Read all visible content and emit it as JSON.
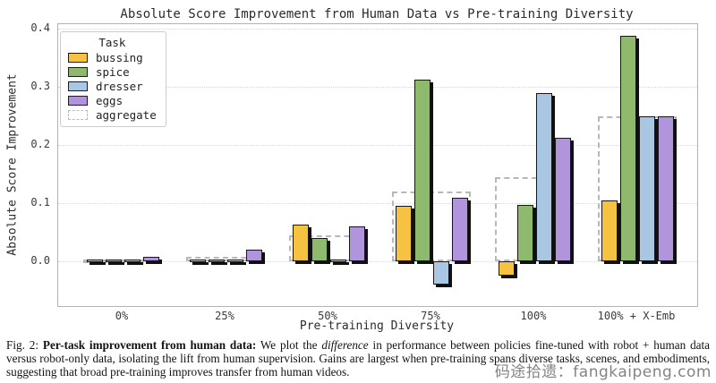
{
  "chart_data": {
    "type": "bar",
    "title": "Absolute Score Improvement from Human Data vs Pre-training Diversity",
    "xlabel": "Pre-training Diversity",
    "ylabel": "Absolute Score Improvement",
    "categories": [
      "0%",
      "25%",
      "50%",
      "75%",
      "100%",
      "100% + X-Emb"
    ],
    "ylim": [
      -0.077,
      0.408
    ],
    "yticks": [
      0.0,
      0.1,
      0.2,
      0.3,
      0.4
    ],
    "grid": "horizontal dotted",
    "legend_title": "Task",
    "legend_position": "upper left",
    "series": [
      {
        "name": "bussing",
        "color": "#F5C242",
        "values": [
          0.0,
          0.002,
          0.063,
          0.095,
          -0.025,
          0.105
        ]
      },
      {
        "name": "spice",
        "color": "#8FBA6E",
        "values": [
          0.0,
          0.003,
          0.04,
          0.313,
          0.097,
          0.388
        ]
      },
      {
        "name": "dresser",
        "color": "#A9C7E3",
        "values": [
          0.0,
          0.0,
          0.0,
          -0.04,
          0.29,
          0.25
        ]
      },
      {
        "name": "eggs",
        "color": "#B095DC",
        "values": [
          0.007,
          0.02,
          0.06,
          0.11,
          0.213,
          0.25
        ]
      }
    ],
    "aggregate": {
      "name": "aggregate",
      "color": "#BBBBBB",
      "values": [
        0.002,
        0.007,
        0.045,
        0.12,
        0.145,
        0.25
      ]
    }
  },
  "caption": {
    "fig_label": "Fig. 2:",
    "bold_title": "Per-task improvement from human data:",
    "before_italic": "We plot the",
    "italic_word": "difference",
    "after_italic": "in performance between policies fine-tuned with robot + human data versus robot-only data, isolating the lift from human supervision. Gains are largest when pre-training spans diverse tasks, scenes, and embodiments, suggesting that broad pre-training improves transfer from human videos."
  },
  "watermark": {
    "text": "码途拾遗：fangkaipeng.com"
  }
}
